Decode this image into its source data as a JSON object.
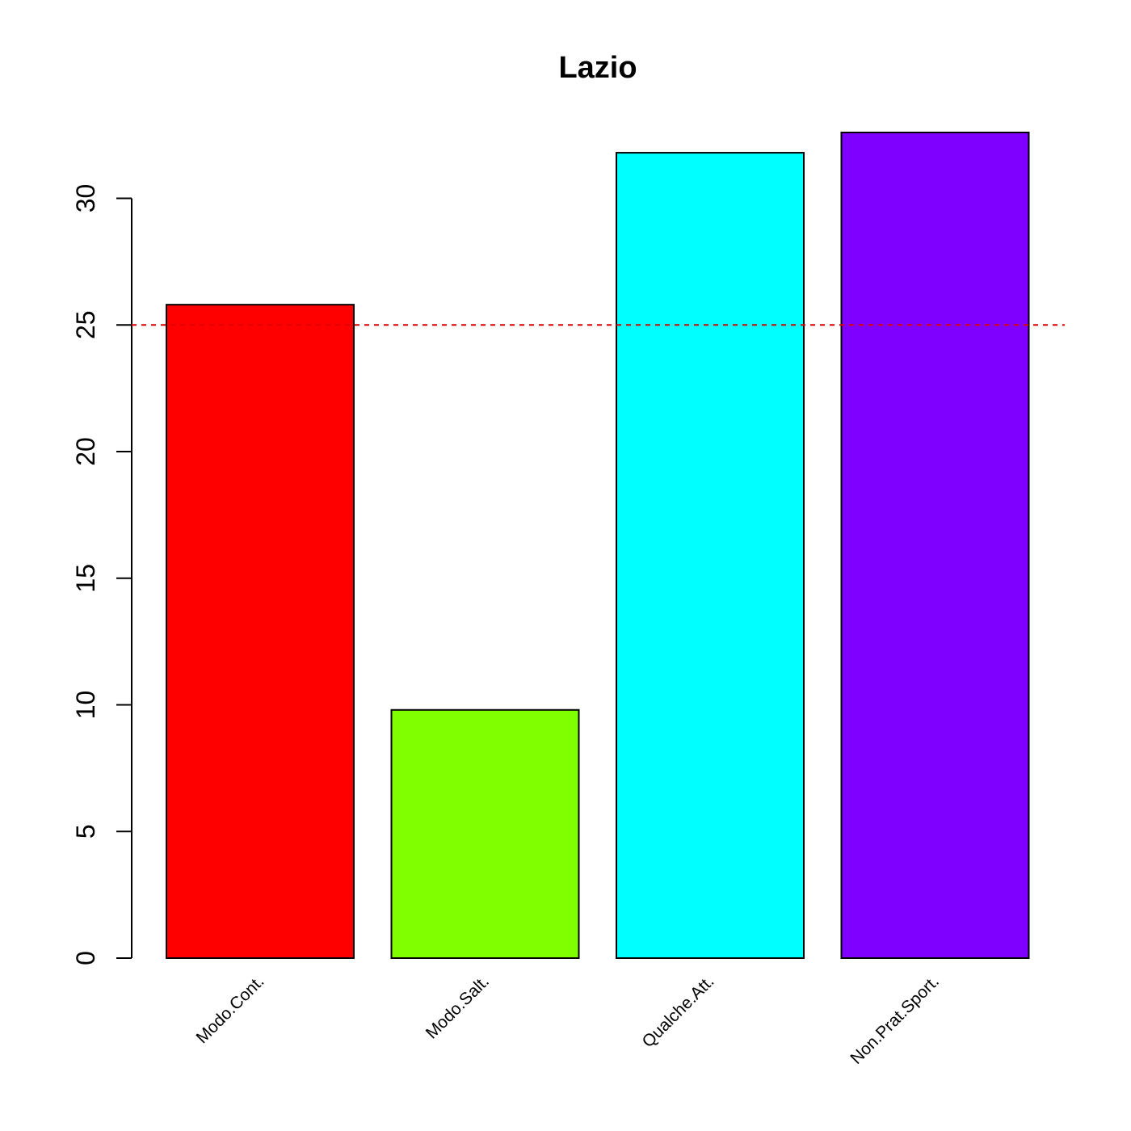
{
  "chart_data": {
    "type": "bar",
    "title": "Lazio",
    "xlabel": "",
    "ylabel": "",
    "categories": [
      "Modo.Cont.",
      "Modo.Salt.",
      "Qualche.Att.",
      "Non.Prat.Sport."
    ],
    "values": [
      25.8,
      9.8,
      31.8,
      32.6
    ],
    "colors": [
      "#ff0000",
      "#80ff00",
      "#00ffff",
      "#8000ff"
    ],
    "ylim": [
      0,
      32.6
    ],
    "yticks": [
      0,
      5,
      10,
      15,
      20,
      25,
      30
    ],
    "reference_line": {
      "value": 25,
      "style": "dashed",
      "color": "#dd0000"
    },
    "grid": false,
    "legend": "none"
  }
}
